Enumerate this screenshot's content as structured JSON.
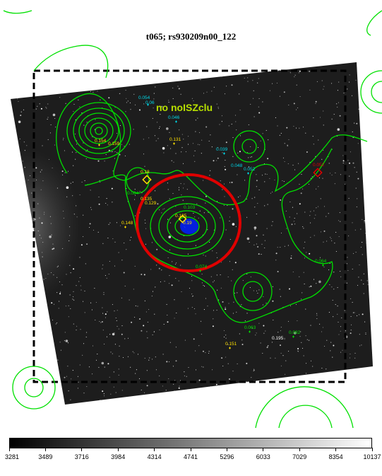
{
  "title": "t065; rs930209n00_122",
  "overlay_label": "no noISZclu",
  "labels": {
    "cyan": [
      "0.054",
      "0.06",
      "0.046",
      "0.039",
      "0.048",
      "0.052"
    ],
    "yellow": [
      "0.154",
      "0.159",
      "0.131",
      "0.135",
      "0.148",
      "0.151",
      "0.125",
      "0.129",
      "0.18",
      "0.19"
    ],
    "green": [
      "0.103",
      "0.084",
      "0.074",
      "0.064",
      "0.063",
      "0.082"
    ],
    "red": [
      "0.052"
    ],
    "white": [
      "0.195"
    ]
  },
  "colorbar": {
    "ticks": [
      "3281",
      "3489",
      "3716",
      "3984",
      "4314",
      "4741",
      "5296",
      "6033",
      "7029",
      "8354",
      "10137"
    ]
  },
  "colors": {
    "contour": "#00e000",
    "circle": "#e00000",
    "box": "#000000",
    "cyan": "#00d8e8",
    "yellow": "#ffe000",
    "blue": "#0020ff"
  }
}
